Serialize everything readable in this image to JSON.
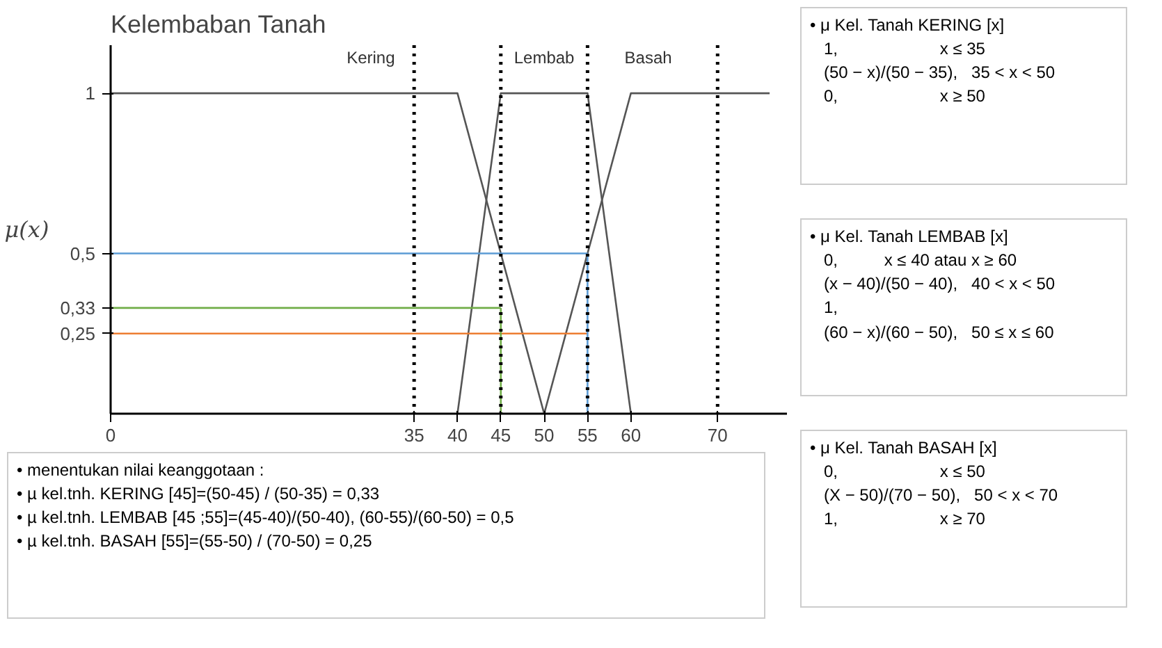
{
  "chart_data": {
    "type": "line",
    "title": "Kelembaban Tanah",
    "ylabel": "μ(x)",
    "xlim": [
      0,
      78
    ],
    "ylim": [
      0,
      1.15
    ],
    "xticks": [
      0,
      35,
      40,
      45,
      50,
      55,
      60,
      70
    ],
    "yticks": [
      {
        "value": 0.25,
        "label": "0,25"
      },
      {
        "value": 0.33,
        "label": "0,33"
      },
      {
        "value": 0.5,
        "label": "0,5"
      },
      1
    ],
    "grid": false,
    "marker": "none",
    "series": [
      {
        "name": "Kering",
        "color": "#555555",
        "x": [
          0,
          40,
          50
        ],
        "values": [
          1,
          1,
          0
        ]
      },
      {
        "name": "Lembab",
        "color": "#555555",
        "x": [
          40,
          45,
          55,
          60
        ],
        "values": [
          0,
          1,
          1,
          0
        ]
      },
      {
        "name": "Basah",
        "color": "#555555",
        "x": [
          50,
          60,
          76
        ],
        "values": [
          0,
          1,
          1
        ]
      },
      {
        "color": "#5b9bd5",
        "x": [
          0,
          55
        ],
        "values": [
          0.5,
          0.5
        ]
      },
      {
        "color": "#70ad47",
        "x": [
          0,
          45
        ],
        "values": [
          0.33,
          0.33
        ]
      },
      {
        "color": "#ed7d31",
        "x": [
          0,
          55
        ],
        "values": [
          0.25,
          0.25
        ]
      },
      {
        "color": "#70ad47",
        "x": [
          45,
          45
        ],
        "values": [
          0,
          0.33
        ]
      },
      {
        "color": "#5b9bd5",
        "x": [
          55,
          55
        ],
        "values": [
          0,
          0.5
        ]
      }
    ],
    "ref_lines": [
      {
        "axis": "x",
        "value": 35,
        "color": "#000000",
        "line_style": "dotted"
      },
      {
        "axis": "x",
        "value": 45,
        "color": "#000000",
        "line_style": "dotted"
      },
      {
        "axis": "x",
        "value": 55,
        "color": "#000000",
        "line_style": "dotted"
      },
      {
        "axis": "x",
        "value": 70,
        "color": "#000000",
        "line_style": "dotted"
      }
    ],
    "annotations": [
      "• μ Kel. Tanah KERING [x]\n   1,                      x ≤ 35\n   (50 − x)/(50 − 35),   35 < x < 50\n   0,                      x ≥ 50",
      "• μ Kel. Tanah LEMBAB [x]\n   0,          x ≤ 40 atau x ≥ 60\n   (x − 40)/(50 − 40),   40 < x < 50\n   1,\n   (60 − x)/(60 − 50),   50 ≤ x ≤ 60",
      "• μ Kel. Tanah BASAH [x]\n   0,                      x ≤ 50\n   (X − 50)/(70 − 50),   50 < x < 70\n   1,                      x ≥ 70",
      "• menentukan nilai keanggotaan :\n• µ kel.tnh. KERING [45]=(50-45) / (50-35) = 0,33\n• µ kel.tnh. LEMBAB [45 ;55]=(45-40)/(50-40), (60-55)/(60-50) = 0,5\n• µ kel.tnh. BASAH [55]=(55-50) / (70-50) = 0,25"
    ]
  }
}
